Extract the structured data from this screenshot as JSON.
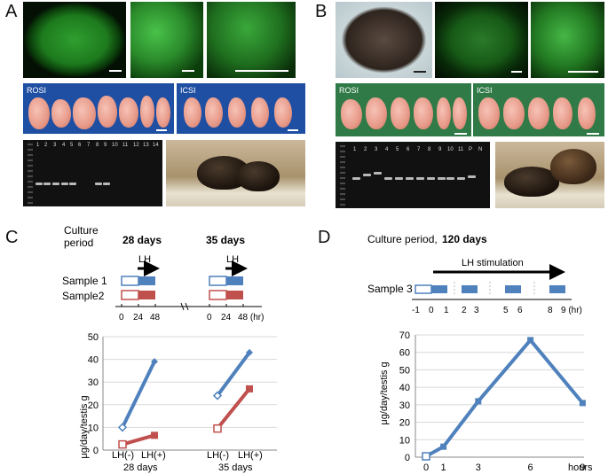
{
  "panels": {
    "A": {
      "label": "A",
      "strip_left_label": "ROSI",
      "strip_right_label": "ICSI",
      "gel_lanes": [
        "1",
        "2",
        "3",
        "4",
        "5",
        "6",
        "7",
        "8",
        "9",
        "10",
        "11",
        "12",
        "13",
        "14"
      ]
    },
    "B": {
      "label": "B",
      "strip_left_label": "ROSI",
      "strip_right_label": "ICSI",
      "gel_lanes": [
        "1",
        "2",
        "3",
        "4",
        "5",
        "6",
        "7",
        "8",
        "9",
        "10",
        "11",
        "P",
        "N"
      ]
    },
    "C": {
      "label": "C",
      "culture_period_line1": "Culture",
      "culture_period_line2": "period",
      "period1": "28 days",
      "period2": "35 days",
      "lh_label": "LH",
      "sample1": "Sample 1",
      "sample2": "Sample2",
      "tick_0": "0",
      "tick_24": "24",
      "tick_48": "48",
      "tick_48_hr": "48 (hr)",
      "chart_ylabel": "μg/day/testis g",
      "x_lh_minus": "LH(-)",
      "x_lh_plus": "LH(+)",
      "group1": "28 days",
      "group2": "35 days"
    },
    "D": {
      "label": "D",
      "title_prefix": "Culture period,",
      "title_bold": "120 days",
      "lh_stim": "LH stimulation",
      "sample3": "Sample 3",
      "timeline_ticks": [
        "-1",
        "0",
        "1",
        "2",
        "3",
        "5",
        "6",
        "8",
        "9 (hr)"
      ],
      "chart_ylabel": "μg/day/testis g",
      "x_unit": "hours"
    }
  },
  "colors": {
    "blue": "#4f81bd",
    "red": "#c0504d",
    "gel_bg": "#141414",
    "strip_blue": "#1f4fa3",
    "strip_green": "#2f7a46"
  },
  "chart_data": [
    {
      "type": "line",
      "title": "",
      "ylabel": "μg/day/testis g",
      "categories": [
        "LH(-)",
        "LH(+)"
      ],
      "groups": [
        "28 days",
        "35 days"
      ],
      "ylim": [
        0,
        50
      ],
      "yticks": [
        0,
        10,
        20,
        30,
        40,
        50
      ],
      "series": [
        {
          "color": "#4f81bd",
          "group_28_days": [
            10,
            39
          ],
          "group_35_days": [
            24,
            43
          ]
        },
        {
          "color": "#c0504d",
          "group_28_days": [
            2.5,
            6.5
          ],
          "group_35_days": [
            9.5,
            27
          ]
        }
      ]
    },
    {
      "type": "line",
      "title": "",
      "ylabel": "μg/day/testis g",
      "xlabel": "hours",
      "x": [
        0,
        1,
        3,
        6,
        9
      ],
      "xticks": [
        "0",
        "1",
        "3",
        "6",
        "9"
      ],
      "ylim": [
        0,
        70
      ],
      "yticks": [
        0,
        10,
        20,
        30,
        40,
        50,
        60,
        70
      ],
      "series": [
        {
          "color": "#4f81bd",
          "values": [
            0.5,
            6,
            32,
            67,
            31
          ]
        }
      ]
    }
  ]
}
